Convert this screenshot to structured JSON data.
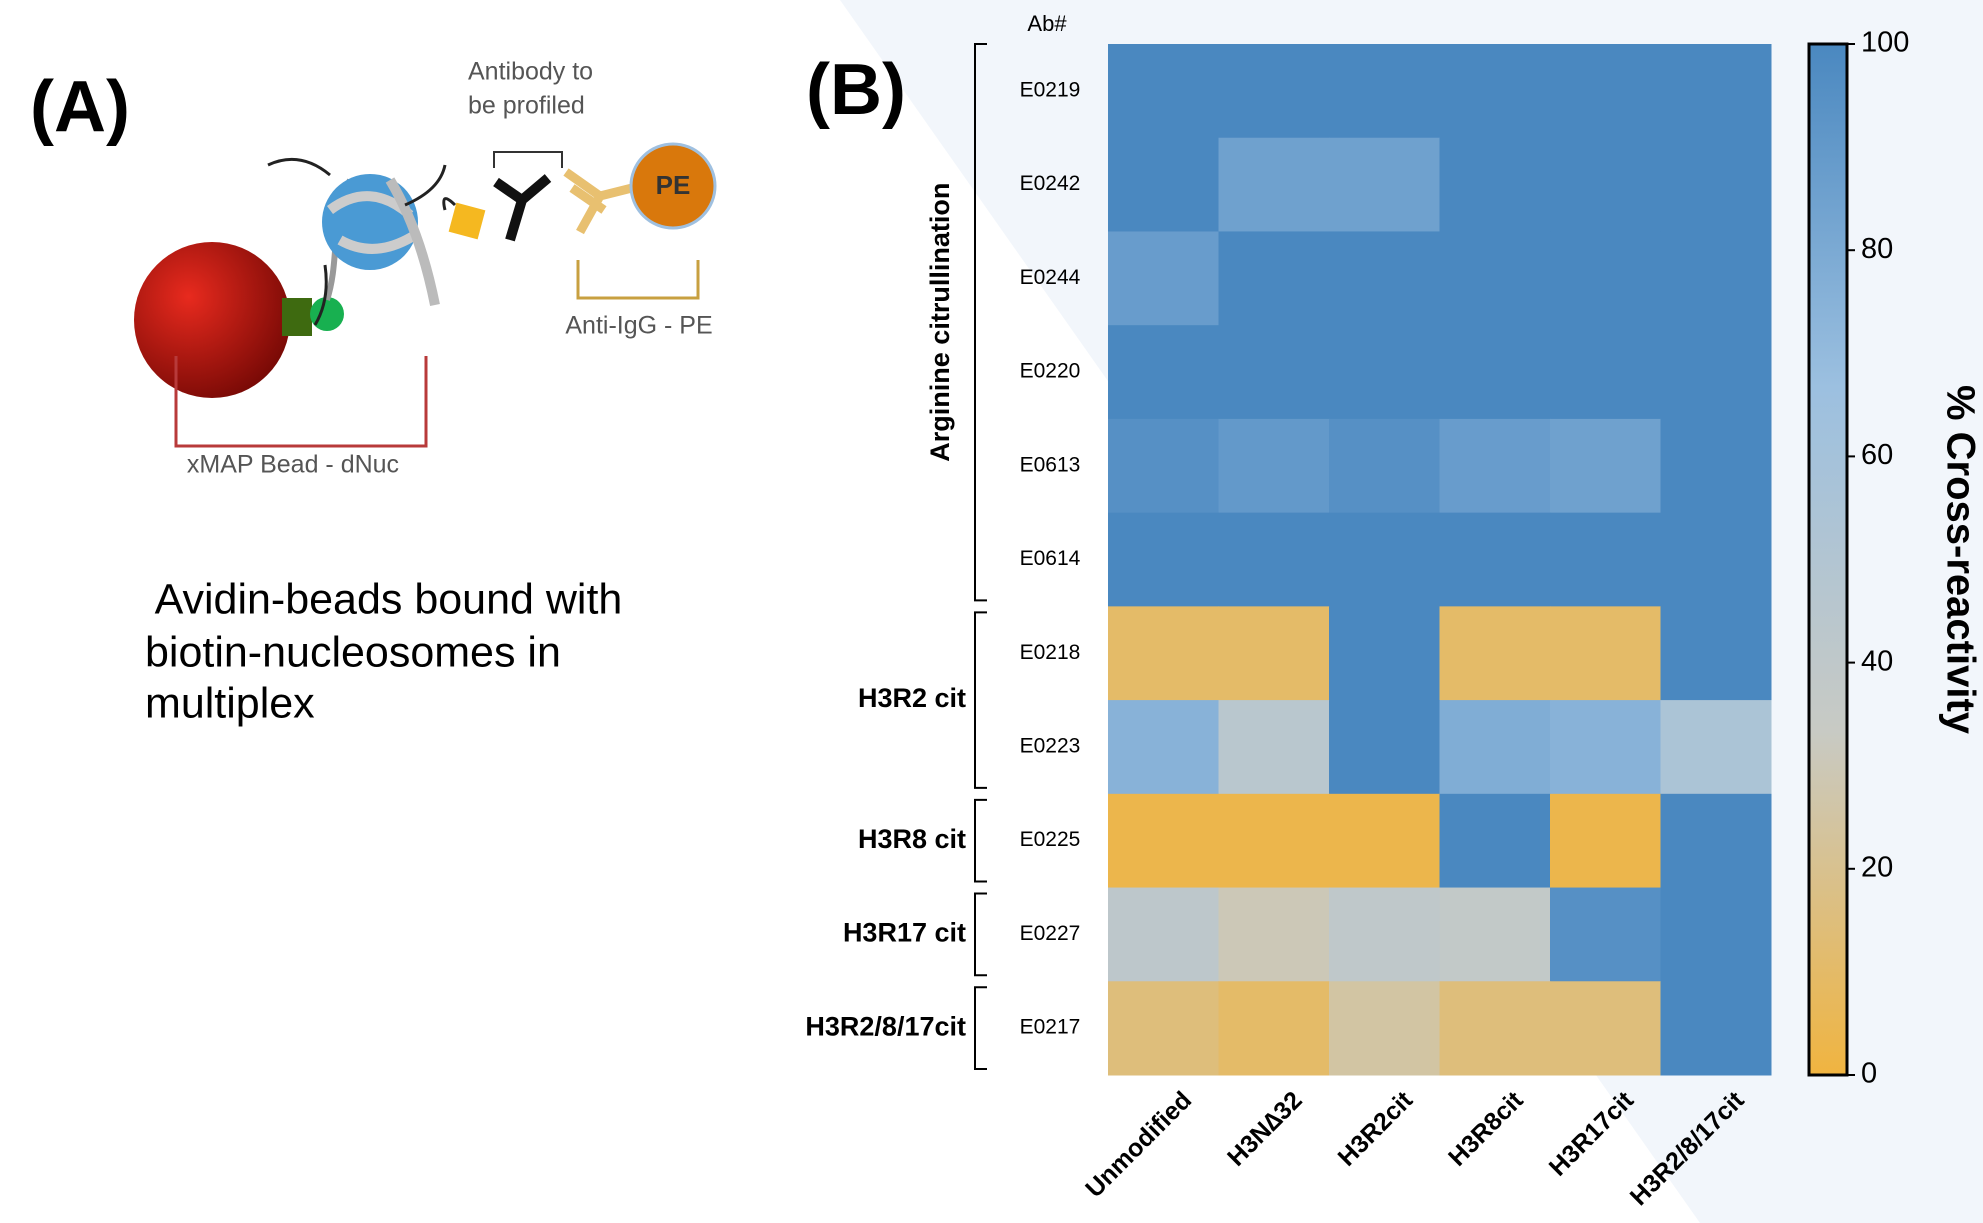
{
  "panel_a": {
    "label": "(A)",
    "antibody_text": [
      "Antibody to",
      "be profiled"
    ],
    "secondary_text": "Anti-IgG - PE",
    "pe_text": "PE",
    "bead_text": "xMAP Bead - dNuc",
    "caption": [
      " Avidin-beads bound with",
      "biotin-nucleosomes in",
      "multiplex"
    ]
  },
  "chart_data": {
    "type": "heatmap",
    "panel_label": "(B)",
    "y_title": "Ab#",
    "columns": [
      "Unmodified",
      "H3N∆32",
      "H3R2cit",
      "H3R8cit",
      "H3R17cit",
      "H3R2/8/17cit"
    ],
    "rows": [
      "E0219",
      "E0242",
      "E0244",
      "E0220",
      "E0613",
      "E0614",
      "E0218",
      "E0223",
      "E0225",
      "E0227",
      "E0217"
    ],
    "values": [
      [
        100,
        100,
        100,
        100,
        100,
        100
      ],
      [
        100,
        85,
        85,
        100,
        100,
        100
      ],
      [
        88,
        100,
        100,
        100,
        100,
        100
      ],
      [
        100,
        100,
        100,
        100,
        100,
        100
      ],
      [
        95,
        90,
        95,
        88,
        85,
        100
      ],
      [
        100,
        100,
        100,
        100,
        100,
        100
      ],
      [
        10,
        10,
        100,
        10,
        10,
        100
      ],
      [
        75,
        45,
        100,
        78,
        75,
        55
      ],
      [
        3,
        3,
        3,
        100,
        3,
        100
      ],
      [
        42,
        30,
        40,
        38,
        95,
        100
      ],
      [
        15,
        10,
        25,
        15,
        15,
        100
      ]
    ],
    "groups": [
      {
        "label": "Arginine citrullination",
        "rows": [
          "E0219",
          "E0614"
        ],
        "rotated": true
      },
      {
        "label": "H3R2 cit",
        "rows": [
          "E0218",
          "E0223"
        ]
      },
      {
        "label": "H3R8 cit",
        "rows": [
          "E0225",
          "E0225"
        ]
      },
      {
        "label": "H3R17 cit",
        "rows": [
          "E0227",
          "E0227"
        ]
      },
      {
        "label": "H3R2/8/17cit",
        "rows": [
          "E0217",
          "E0217"
        ]
      }
    ],
    "colors": [
      "#f0b440",
      "#c8cac4",
      "#9cc0e0",
      "#4a88c0"
    ],
    "zlim": [
      0,
      100
    ],
    "zticks": [
      0,
      20,
      40,
      60,
      80,
      100
    ],
    "colorbar_title": "% Cross-reactivity"
  }
}
